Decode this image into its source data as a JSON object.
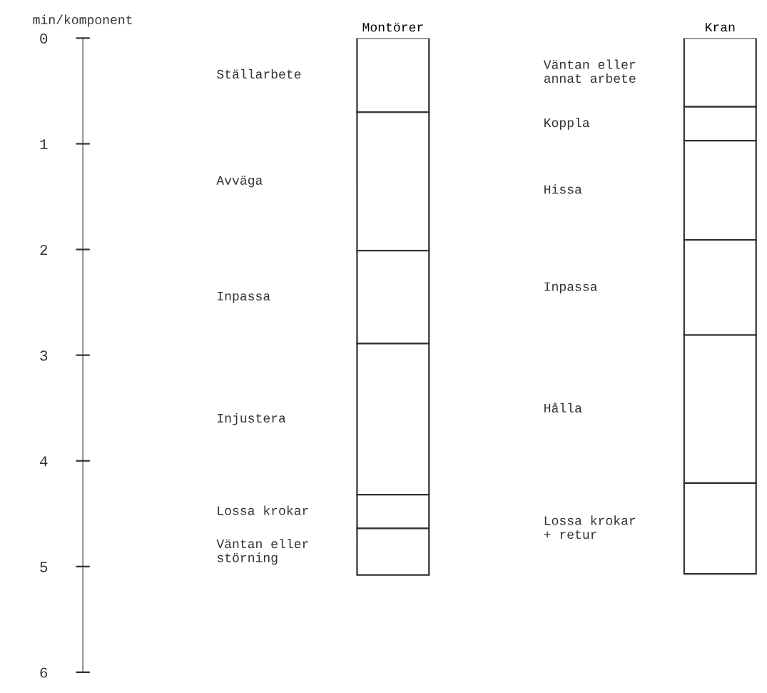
{
  "chart_data": {
    "type": "bar",
    "stacked": true,
    "ylabel": "min/komponent",
    "categories": [
      "Montörer",
      "Kran"
    ],
    "ylim": [
      6,
      0
    ],
    "yticks": [
      0,
      1,
      2,
      3,
      4,
      5,
      6
    ],
    "grid": false,
    "legend": false,
    "series": [
      {
        "color": "#ffffff",
        "values": [
          0.7,
          0.65
        ]
      },
      {
        "color": "#ffffff",
        "values": [
          1.31,
          0.32
        ]
      },
      {
        "color": "#ffffff",
        "values": [
          0.88,
          0.94
        ]
      },
      {
        "color": "#ffffff",
        "values": [
          1.43,
          0.9
        ]
      },
      {
        "color": "#ffffff",
        "values": [
          0.32,
          1.4
        ]
      },
      {
        "color": "#ffffff",
        "values": [
          0.44,
          0.86
        ]
      }
    ],
    "annotations": [
      "Ställarbete",
      "Avväga",
      "Inpassa",
      "Injustera",
      "Lossa krokar",
      "Väntan eller\nstörning",
      "Väntan eller\nannat arbete",
      "Koppla",
      "Hissa",
      "Inpassa",
      "Hålla",
      "Lossa krokar\n+ retur"
    ]
  }
}
